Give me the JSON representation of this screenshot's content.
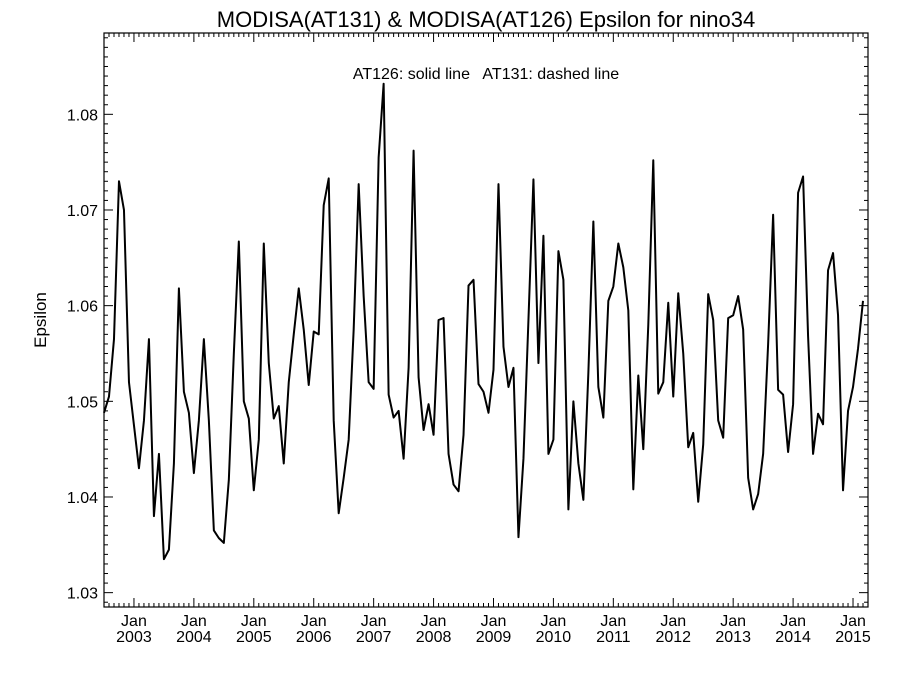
{
  "chart_data": {
    "type": "line",
    "title": "MODISA(AT131) & MODISA(AT126)  Epsilon for nino34",
    "annotation": "AT126: solid line   AT131: dashed line",
    "ylabel": "Epsilon",
    "xlabel": "",
    "x_range": [
      "2002-07",
      "2015-04"
    ],
    "ylim": [
      1.0285,
      1.0885
    ],
    "y_ticks": [
      "1.03",
      "1.04",
      "1.05",
      "1.06",
      "1.07",
      "1.08"
    ],
    "x_ticks": [
      {
        "month": "Jan",
        "year": "2003",
        "date": "2003-01"
      },
      {
        "month": "Jan",
        "year": "2004",
        "date": "2004-01"
      },
      {
        "month": "Jan",
        "year": "2005",
        "date": "2005-01"
      },
      {
        "month": "Jan",
        "year": "2006",
        "date": "2006-01"
      },
      {
        "month": "Jan",
        "year": "2007",
        "date": "2007-01"
      },
      {
        "month": "Jan",
        "year": "2008",
        "date": "2008-01"
      },
      {
        "month": "Jan",
        "year": "2009",
        "date": "2009-01"
      },
      {
        "month": "Jan",
        "year": "2010",
        "date": "2010-01"
      },
      {
        "month": "Jan",
        "year": "2011",
        "date": "2011-01"
      },
      {
        "month": "Jan",
        "year": "2012",
        "date": "2012-01"
      },
      {
        "month": "Jan",
        "year": "2013",
        "date": "2013-01"
      },
      {
        "month": "Jan",
        "year": "2014",
        "date": "2014-01"
      },
      {
        "month": "Jan",
        "year": "2015",
        "date": "2015-01"
      }
    ],
    "grid": false,
    "series": [
      {
        "name": "AT126",
        "style": "solid",
        "color": "#000000",
        "points": [
          [
            "2002-07",
            1.0488
          ],
          [
            "2002-08",
            1.0505
          ],
          [
            "2002-09",
            1.0565
          ],
          [
            "2002-10",
            1.073
          ],
          [
            "2002-11",
            1.07
          ],
          [
            "2002-12",
            1.052
          ],
          [
            "2003-01",
            1.0475
          ],
          [
            "2003-02",
            1.043
          ],
          [
            "2003-03",
            1.048
          ],
          [
            "2003-04",
            1.0565
          ],
          [
            "2003-05",
            1.038
          ],
          [
            "2003-06",
            1.0445
          ],
          [
            "2003-07",
            1.0335
          ],
          [
            "2003-08",
            1.0345
          ],
          [
            "2003-09",
            1.0435
          ],
          [
            "2003-10",
            1.0618
          ],
          [
            "2003-11",
            1.051
          ],
          [
            "2003-12",
            1.0488
          ],
          [
            "2004-01",
            1.0425
          ],
          [
            "2004-02",
            1.048
          ],
          [
            "2004-03",
            1.0565
          ],
          [
            "2004-04",
            1.048
          ],
          [
            "2004-05",
            1.0365
          ],
          [
            "2004-06",
            1.0357
          ],
          [
            "2004-07",
            1.0352
          ],
          [
            "2004-08",
            1.0418
          ],
          [
            "2004-09",
            1.055
          ],
          [
            "2004-10",
            1.0667
          ],
          [
            "2004-11",
            1.05
          ],
          [
            "2004-12",
            1.0482
          ],
          [
            "2005-01",
            1.0407
          ],
          [
            "2005-02",
            1.046
          ],
          [
            "2005-03",
            1.0665
          ],
          [
            "2005-04",
            1.054
          ],
          [
            "2005-05",
            1.0482
          ],
          [
            "2005-06",
            1.0495
          ],
          [
            "2005-07",
            1.0435
          ],
          [
            "2005-08",
            1.052
          ],
          [
            "2005-09",
            1.057
          ],
          [
            "2005-10",
            1.0618
          ],
          [
            "2005-11",
            1.0575
          ],
          [
            "2005-12",
            1.0517
          ],
          [
            "2006-01",
            1.0573
          ],
          [
            "2006-02",
            1.057
          ],
          [
            "2006-03",
            1.0705
          ],
          [
            "2006-04",
            1.0733
          ],
          [
            "2006-05",
            1.048
          ],
          [
            "2006-06",
            1.0383
          ],
          [
            "2006-07",
            1.042
          ],
          [
            "2006-08",
            1.046
          ],
          [
            "2006-09",
            1.0575
          ],
          [
            "2006-10",
            1.0727
          ],
          [
            "2006-11",
            1.061
          ],
          [
            "2006-12",
            1.052
          ],
          [
            "2007-01",
            1.0513
          ],
          [
            "2007-02",
            1.0755
          ],
          [
            "2007-03",
            1.0832
          ],
          [
            "2007-04",
            1.0507
          ],
          [
            "2007-05",
            1.0483
          ],
          [
            "2007-06",
            1.049
          ],
          [
            "2007-07",
            1.044
          ],
          [
            "2007-08",
            1.0535
          ],
          [
            "2007-09",
            1.0762
          ],
          [
            "2007-10",
            1.0525
          ],
          [
            "2007-11",
            1.047
          ],
          [
            "2007-12",
            1.0497
          ],
          [
            "2008-01",
            1.0465
          ],
          [
            "2008-02",
            1.0585
          ],
          [
            "2008-03",
            1.0587
          ],
          [
            "2008-04",
            1.0445
          ],
          [
            "2008-05",
            1.0413
          ],
          [
            "2008-06",
            1.0406
          ],
          [
            "2008-07",
            1.0465
          ],
          [
            "2008-08",
            1.0621
          ],
          [
            "2008-09",
            1.0627
          ],
          [
            "2008-10",
            1.0518
          ],
          [
            "2008-11",
            1.051
          ],
          [
            "2008-12",
            1.0488
          ],
          [
            "2009-01",
            1.0533
          ],
          [
            "2009-02",
            1.0727
          ],
          [
            "2009-03",
            1.0557
          ],
          [
            "2009-04",
            1.0515
          ],
          [
            "2009-05",
            1.0535
          ],
          [
            "2009-06",
            1.0358
          ],
          [
            "2009-07",
            1.044
          ],
          [
            "2009-08",
            1.0585
          ],
          [
            "2009-09",
            1.0732
          ],
          [
            "2009-10",
            1.054
          ],
          [
            "2009-11",
            1.0673
          ],
          [
            "2009-12",
            1.0445
          ],
          [
            "2010-01",
            1.046
          ],
          [
            "2010-02",
            1.0657
          ],
          [
            "2010-03",
            1.0627
          ],
          [
            "2010-04",
            1.0387
          ],
          [
            "2010-05",
            1.05
          ],
          [
            "2010-06",
            1.0435
          ],
          [
            "2010-07",
            1.0397
          ],
          [
            "2010-08",
            1.053
          ],
          [
            "2010-09",
            1.0688
          ],
          [
            "2010-10",
            1.0515
          ],
          [
            "2010-11",
            1.0483
          ],
          [
            "2010-12",
            1.0605
          ],
          [
            "2011-01",
            1.062
          ],
          [
            "2011-02",
            1.0665
          ],
          [
            "2011-03",
            1.064
          ],
          [
            "2011-04",
            1.0595
          ],
          [
            "2011-05",
            1.0408
          ],
          [
            "2011-06",
            1.0527
          ],
          [
            "2011-07",
            1.045
          ],
          [
            "2011-08",
            1.058
          ],
          [
            "2011-09",
            1.0752
          ],
          [
            "2011-10",
            1.0508
          ],
          [
            "2011-11",
            1.052
          ],
          [
            "2011-12",
            1.0603
          ],
          [
            "2012-01",
            1.0505
          ],
          [
            "2012-02",
            1.0613
          ],
          [
            "2012-03",
            1.055
          ],
          [
            "2012-04",
            1.0452
          ],
          [
            "2012-05",
            1.0467
          ],
          [
            "2012-06",
            1.0395
          ],
          [
            "2012-07",
            1.0455
          ],
          [
            "2012-08",
            1.0612
          ],
          [
            "2012-09",
            1.0585
          ],
          [
            "2012-10",
            1.048
          ],
          [
            "2012-11",
            1.0462
          ],
          [
            "2012-12",
            1.0587
          ],
          [
            "2013-01",
            1.059
          ],
          [
            "2013-02",
            1.061
          ],
          [
            "2013-03",
            1.0575
          ],
          [
            "2013-04",
            1.042
          ],
          [
            "2013-05",
            1.0387
          ],
          [
            "2013-06",
            1.0403
          ],
          [
            "2013-07",
            1.0445
          ],
          [
            "2013-08",
            1.056
          ],
          [
            "2013-09",
            1.0695
          ],
          [
            "2013-10",
            1.0512
          ],
          [
            "2013-11",
            1.0507
          ],
          [
            "2013-12",
            1.0447
          ],
          [
            "2014-01",
            1.0497
          ],
          [
            "2014-02",
            1.0718
          ],
          [
            "2014-03",
            1.0735
          ],
          [
            "2014-04",
            1.0568
          ],
          [
            "2014-05",
            1.0445
          ],
          [
            "2014-06",
            1.0487
          ],
          [
            "2014-07",
            1.0476
          ],
          [
            "2014-08",
            1.0637
          ],
          [
            "2014-09",
            1.0655
          ],
          [
            "2014-10",
            1.059
          ],
          [
            "2014-11",
            1.0407
          ],
          [
            "2014-12",
            1.049
          ],
          [
            "2015-01",
            1.0515
          ],
          [
            "2015-02",
            1.0555
          ],
          [
            "2015-03",
            1.0605
          ]
        ]
      }
    ]
  }
}
